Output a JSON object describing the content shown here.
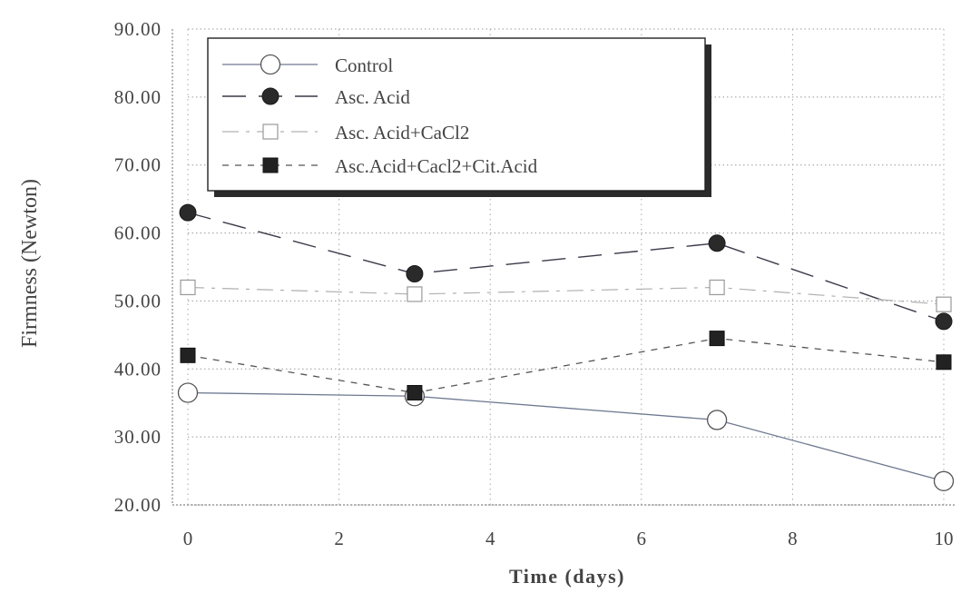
{
  "chart_data": {
    "type": "line",
    "title": "",
    "xlabel": "Time  (days)",
    "ylabel": "Firmness  (Newton)",
    "xlim": [
      0,
      10
    ],
    "ylim": [
      20,
      90
    ],
    "xticks": [
      0,
      2,
      4,
      6,
      8,
      10
    ],
    "yticks": [
      20,
      30,
      40,
      50,
      60,
      70,
      80,
      90
    ],
    "ytick_labels": [
      "20.00",
      "30.00",
      "40.00",
      "50.00",
      "60.00",
      "70.00",
      "80.00",
      "90.00"
    ],
    "grid": true,
    "legend_position": "top-left",
    "series": [
      {
        "name": "Control",
        "marker": "open-circle",
        "line": "solid",
        "x": [
          0,
          3,
          7,
          10
        ],
        "y": [
          36.5,
          36.0,
          32.5,
          23.5
        ]
      },
      {
        "name": "Asc. Acid",
        "marker": "filled-circle",
        "line": "long-dash",
        "x": [
          0,
          3,
          7,
          10
        ],
        "y": [
          63.0,
          54.0,
          58.5,
          47.0
        ]
      },
      {
        "name": "Asc. Acid+CaCl2",
        "marker": "open-square",
        "line": "dash-dot-light",
        "x": [
          0,
          3,
          7,
          10
        ],
        "y": [
          52.0,
          51.0,
          52.0,
          49.5
        ]
      },
      {
        "name": "Asc.Acid+Cacl2+Cit.Acid",
        "marker": "filled-square",
        "line": "short-dash",
        "x": [
          0,
          3,
          7,
          10
        ],
        "y": [
          42.0,
          36.5,
          44.5,
          41.0
        ]
      }
    ]
  }
}
